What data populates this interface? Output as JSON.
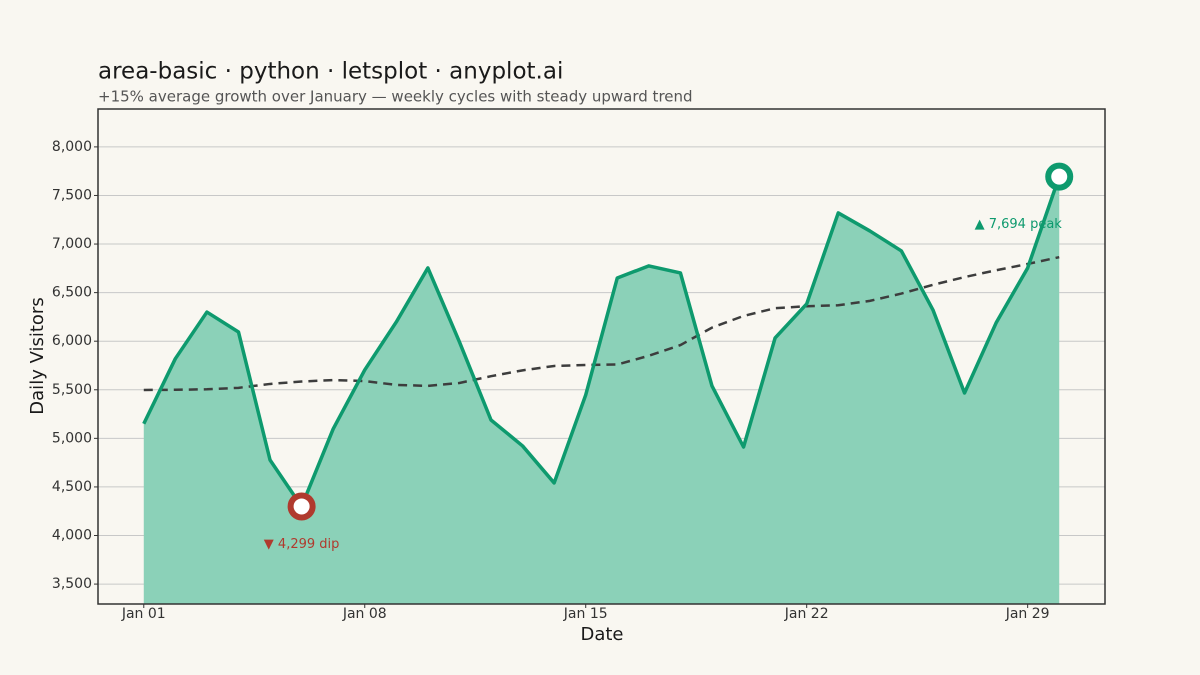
{
  "chart_data": {
    "type": "area",
    "title": "area-basic · python · letsplot · anyplot.ai",
    "subtitle": "+15% average growth over January — weekly cycles with steady upward trend",
    "x_label": "Date",
    "y_label": "Daily Visitors",
    "x": [
      1,
      2,
      3,
      4,
      5,
      6,
      7,
      8,
      9,
      10,
      11,
      12,
      13,
      14,
      15,
      16,
      17,
      18,
      19,
      20,
      21,
      22,
      23,
      24,
      25,
      26,
      27,
      28,
      29,
      30
    ],
    "series": [
      {
        "color": "#0e9a6e",
        "fill": "#8bd1b8",
        "values": [
          5150,
          5820,
          6300,
          6095,
          4777,
          4299,
          5097,
          5704,
          6198,
          6754,
          5992,
          5189,
          4922,
          4541,
          5447,
          6651,
          6775,
          6703,
          5539,
          4911,
          6034,
          6384,
          7320,
          7135,
          6929,
          6322,
          5467,
          6188,
          6754,
          7694
        ]
      }
    ],
    "trend": {
      "color": "#3d3d3d",
      "values": [
        5498,
        5500,
        5505,
        5520,
        5560,
        5585,
        5600,
        5590,
        5550,
        5540,
        5570,
        5640,
        5700,
        5745,
        5755,
        5760,
        5850,
        5960,
        6140,
        6260,
        6340,
        6360,
        6370,
        6415,
        6490,
        6580,
        6660,
        6730,
        6795,
        6865
      ]
    },
    "annotations": [
      {
        "text": "▼ 4,299 dip",
        "at": "min",
        "color": "#b03a2e"
      },
      {
        "text": "▲ 7,694 peak",
        "at": "max",
        "color": "#0e9a6e"
      }
    ],
    "xlim": [
      -0.45,
      31.45
    ],
    "xticks": [
      {
        "value": 1,
        "label": "Jan 01"
      },
      {
        "value": 8,
        "label": "Jan 08"
      },
      {
        "value": 15,
        "label": "Jan 15"
      },
      {
        "value": 22,
        "label": "Jan 22"
      },
      {
        "value": 29,
        "label": "Jan 29"
      }
    ],
    "ylim": [
      3295,
      8390
    ],
    "yticks": [
      {
        "value": 3500,
        "label": "3,500"
      },
      {
        "value": 4000,
        "label": "4,000"
      },
      {
        "value": 4500,
        "label": "4,500"
      },
      {
        "value": 5000,
        "label": "5,000"
      },
      {
        "value": 5500,
        "label": "5,500"
      },
      {
        "value": 6000,
        "label": "6,000"
      },
      {
        "value": 6500,
        "label": "6,500"
      },
      {
        "value": 7000,
        "label": "7,000"
      },
      {
        "value": 7500,
        "label": "7,500"
      },
      {
        "value": 8000,
        "label": "8,000"
      }
    ],
    "grid": true
  }
}
